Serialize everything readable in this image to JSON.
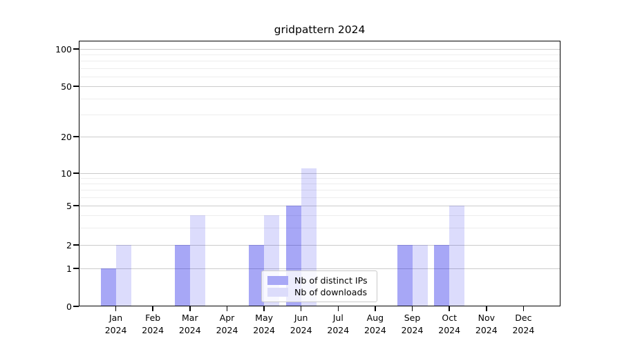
{
  "chart_data": {
    "type": "bar",
    "title": "gridpattern 2024",
    "categories": [
      "Jan",
      "Feb",
      "Mar",
      "Apr",
      "May",
      "Jun",
      "Jul",
      "Aug",
      "Sep",
      "Oct",
      "Nov",
      "Dec"
    ],
    "year": "2024",
    "series": [
      {
        "name": "Nb of distinct IPs",
        "color": "#a8a8f6",
        "bar_rgba": "rgba(0,0,230,0.345)",
        "values": [
          1,
          0,
          2,
          0,
          2,
          5,
          0,
          0,
          2,
          2,
          0,
          0
        ]
      },
      {
        "name": "Nb of downloads",
        "color": "#dcdcfb",
        "bar_rgba": "rgba(0,0,230,0.137)",
        "values": [
          2,
          0,
          4,
          0,
          4,
          11,
          0,
          0,
          2,
          5,
          0,
          0
        ]
      }
    ],
    "y_axis": {
      "tick_labels": [
        "0",
        "1",
        "2",
        "5",
        "10",
        "20",
        "50",
        "100"
      ],
      "ticks": [
        0,
        1,
        2,
        5,
        10,
        20,
        50,
        100
      ],
      "minor_gridlines": [
        3,
        4,
        6,
        7,
        8,
        9,
        30,
        40,
        60,
        70,
        80,
        90
      ],
      "scale": "log-like",
      "range": [
        0,
        115
      ]
    },
    "grid": true,
    "legend_position": "lower center",
    "colors": {
      "major_grid": "#cbcbcb",
      "minor_grid": "#ededed",
      "axis": "#000000"
    }
  }
}
